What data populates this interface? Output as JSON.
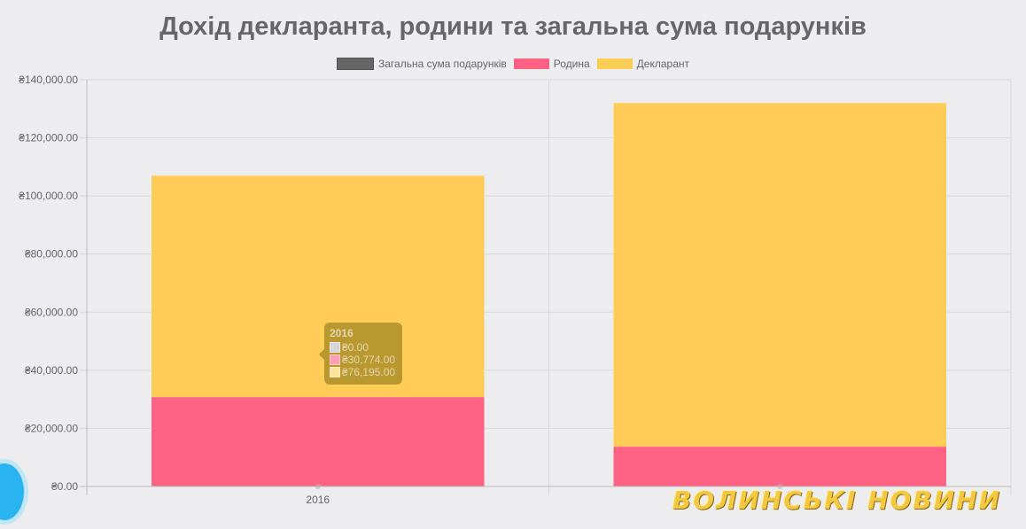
{
  "chart_data": {
    "type": "bar",
    "stacked": true,
    "title": "Дохід декларанта, родини та загальна сума подарунків",
    "categories": [
      "2016",
      ""
    ],
    "series": [
      {
        "name": "Загальна сума подарунків",
        "color": "#666666",
        "values": [
          0,
          0
        ]
      },
      {
        "name": "Родина",
        "color": "#ff6384",
        "values": [
          30774,
          13700
        ]
      },
      {
        "name": "Декларант",
        "color": "#ffcd56",
        "values": [
          76195,
          118300
        ]
      }
    ],
    "ylim": [
      0,
      140000
    ],
    "yticks": [
      "₴0.00",
      "₴20,000.00",
      "₴40,000.00",
      "₴60,000.00",
      "₴80,000.00",
      "₴100,000.00",
      "₴120,000.00",
      "₴140,000.00"
    ],
    "legend_position": "top",
    "grid": true
  },
  "tooltip": {
    "title": "2016",
    "rows": [
      "₴0.00",
      "₴30,774.00",
      "₴76,195.00"
    ],
    "colors": [
      "#d6d6d6",
      "#ff9fb0",
      "#ffe39a"
    ]
  },
  "watermark": "ВОЛИНСЬКІ НОВИНИ"
}
